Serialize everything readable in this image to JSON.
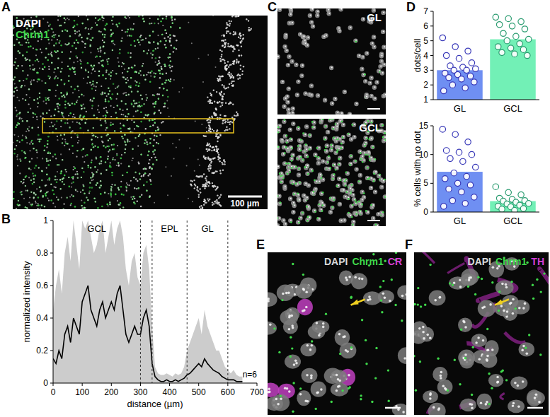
{
  "panels": [
    {
      "letter": "A",
      "labels": [
        {
          "text": "DAPI",
          "color": "#ffffff"
        },
        {
          "text": "Chrm1",
          "color": "#3fd84a"
        }
      ],
      "scale_bar": "100 µm"
    },
    {
      "letter": "B"
    },
    {
      "letter": "C",
      "images": [
        {
          "label": "GL"
        },
        {
          "label": "GCL"
        }
      ]
    },
    {
      "letter": "D"
    },
    {
      "letter": "E",
      "labels": [
        {
          "text": "DAPI",
          "color": "#d8d8d8"
        },
        {
          "text": "Chrm1",
          "color": "#3fd84a"
        },
        {
          "text": "CR",
          "color": "#d43fd4"
        }
      ]
    },
    {
      "letter": "F",
      "labels": [
        {
          "text": "DAPI",
          "color": "#d8d8d8"
        },
        {
          "text": "Chrm1",
          "color": "#3fd84a"
        },
        {
          "text": "TH",
          "color": "#d43fd4"
        }
      ]
    }
  ],
  "chart_data": [
    {
      "type": "line",
      "xlabel": "distance (µm)",
      "ylabel": "normalized intensity",
      "x": [
        0,
        10,
        20,
        30,
        40,
        50,
        60,
        70,
        80,
        90,
        100,
        110,
        120,
        130,
        140,
        150,
        160,
        170,
        180,
        190,
        200,
        210,
        220,
        230,
        240,
        250,
        260,
        270,
        280,
        290,
        300,
        310,
        320,
        330,
        340,
        350,
        360,
        370,
        380,
        390,
        400,
        410,
        420,
        430,
        440,
        450,
        460,
        470,
        480,
        490,
        500,
        510,
        520,
        530,
        540,
        550,
        560,
        570,
        580,
        590,
        600,
        610,
        620,
        630,
        640,
        650
      ],
      "series": [
        {
          "type": "area",
          "color": "#cccccc",
          "values": [
            0.45,
            0.6,
            0.7,
            0.55,
            0.8,
            0.9,
            0.75,
            1,
            0.85,
            0.7,
            1,
            0.95,
            1,
            0.9,
            0.8,
            0.85,
            0.95,
            1,
            0.8,
            0.9,
            1,
            0.85,
            0.95,
            1,
            0.9,
            0.7,
            0.6,
            0.75,
            0.8,
            0.65,
            0.6,
            0.8,
            0.85,
            0.7,
            0.35,
            0.1,
            0.06,
            0.05,
            0.05,
            0.06,
            0.05,
            0.04,
            0.06,
            0.05,
            0.06,
            0.1,
            0.2,
            0.25,
            0.3,
            0.35,
            0.4,
            0.3,
            0.45,
            0.35,
            0.3,
            0.25,
            0.2,
            0.2,
            0.15,
            0.1,
            0.08,
            0.06,
            0.08,
            0.05,
            0.04,
            0.04
          ]
        },
        {
          "type": "line",
          "color": "#000000",
          "values": [
            0.15,
            0.12,
            0.2,
            0.15,
            0.3,
            0.35,
            0.25,
            0.4,
            0.35,
            0.3,
            0.5,
            0.55,
            0.6,
            0.45,
            0.4,
            0.35,
            0.45,
            0.5,
            0.4,
            0.45,
            0.5,
            0.45,
            0.55,
            0.6,
            0.45,
            0.3,
            0.25,
            0.3,
            0.35,
            0.3,
            0.3,
            0.4,
            0.45,
            0.35,
            0.12,
            0.04,
            0.02,
            0.01,
            0.01,
            0.02,
            0.01,
            0.01,
            0.02,
            0.01,
            0.02,
            0.03,
            0.05,
            0.06,
            0.08,
            0.1,
            0.12,
            0.1,
            0.15,
            0.12,
            0.1,
            0.08,
            0.07,
            0.06,
            0.04,
            0.03,
            0.02,
            0.02,
            0.02,
            0.01,
            0.01,
            0.01
          ]
        }
      ],
      "xlim": [
        0,
        700
      ],
      "ylim": [
        0,
        1
      ],
      "xticks": [
        0,
        100,
        200,
        300,
        400,
        500,
        600,
        700
      ],
      "yticks": [
        0,
        0.2,
        0.4,
        0.6,
        0.8,
        1
      ],
      "regions": [
        {
          "label": "GCL",
          "start": 0,
          "end": 300
        },
        {
          "label": "EPL",
          "start": 340,
          "end": 460
        },
        {
          "label": "GL",
          "start": 460,
          "end": 600
        }
      ],
      "annotations": [
        "n=6"
      ]
    },
    {
      "type": "bar",
      "ylabel": "dots/cell",
      "categories": [
        "GL",
        "GCL"
      ],
      "values": [
        3.0,
        5.1
      ],
      "colors": [
        "#6f8ff2",
        "#72f0b6"
      ],
      "points": [
        [
          5.2,
          4.6,
          4.3,
          4.0,
          3.8,
          3.5,
          3.3,
          3.2,
          3.1,
          3.0,
          3.0,
          2.8,
          2.7,
          2.6,
          2.5,
          2.4,
          2.2,
          2.0,
          1.8,
          1.6
        ],
        [
          6.6,
          6.5,
          6.3,
          6.1,
          6.0,
          5.8,
          5.5,
          5.3,
          5.1,
          5.0,
          4.8,
          4.6,
          4.5,
          4.4,
          4.2,
          4.1,
          4.0
        ]
      ],
      "ylim": [
        1,
        7
      ],
      "yticks": [
        1,
        2,
        3,
        4,
        5,
        6,
        7
      ]
    },
    {
      "type": "bar",
      "ylabel": "% cells with no dot",
      "categories": [
        "GL",
        "GCL"
      ],
      "values": [
        7.0,
        1.9
      ],
      "colors": [
        "#6f8ff2",
        "#72f0b6"
      ],
      "points": [
        [
          14.4,
          13.5,
          12.2,
          10.7,
          10.4,
          10.0,
          9.3,
          8.8,
          7.8,
          6.8,
          6.2,
          5.8,
          5.0,
          4.7,
          4.0,
          3.5,
          2.6,
          2.0,
          1.5,
          1.0
        ],
        [
          4.4,
          3.4,
          3.0,
          2.4,
          2.2,
          2.0,
          1.9,
          1.7,
          1.5,
          1.4,
          1.2,
          1.0,
          0.9,
          0.6,
          0.5,
          0.3
        ]
      ],
      "ylim": [
        0,
        15
      ],
      "yticks": [
        0,
        5,
        10,
        15
      ]
    }
  ]
}
